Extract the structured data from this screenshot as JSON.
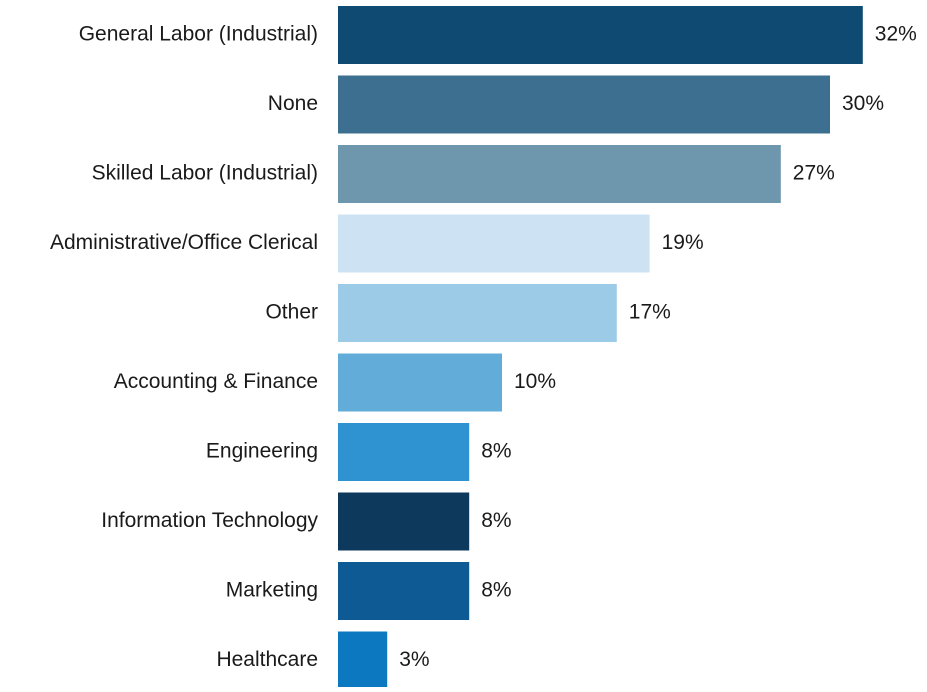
{
  "chart_data": {
    "type": "barh",
    "categories": [
      "General Labor (Industrial)",
      "None",
      "Skilled Labor (Industrial)",
      "Administrative/Office Clerical",
      "Other",
      "Accounting & Finance",
      "Engineering",
      "Information Technology",
      "Marketing",
      "Healthcare"
    ],
    "values": [
      32,
      30,
      27,
      19,
      17,
      10,
      8,
      8,
      8,
      3
    ],
    "value_labels": [
      "32%",
      "30%",
      "27%",
      "19%",
      "17%",
      "10%",
      "8%",
      "8%",
      "8%",
      "3%"
    ],
    "colors": [
      "#0f4a73",
      "#3d7090",
      "#6e96ad",
      "#cde3f3",
      "#9ccbe8",
      "#62acd9",
      "#2f93d1",
      "#0d3a5c",
      "#0e5a94",
      "#0b78c0"
    ]
  }
}
